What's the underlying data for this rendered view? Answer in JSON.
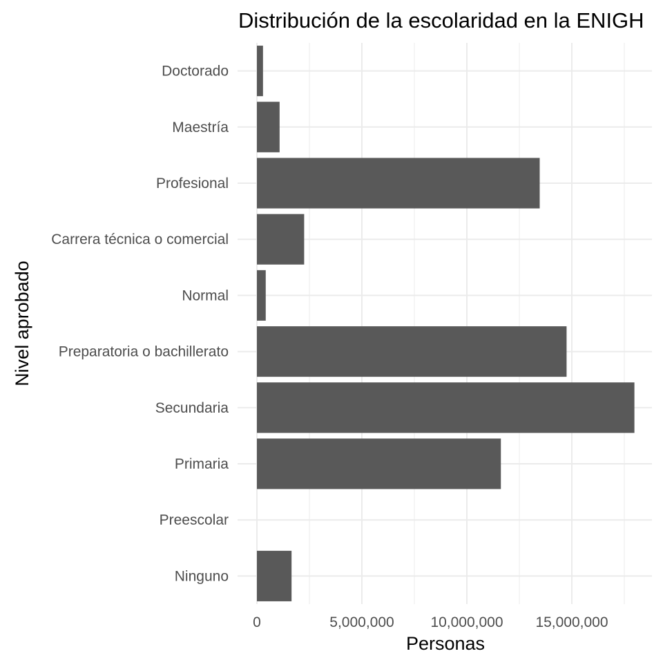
{
  "chart_data": {
    "type": "bar",
    "orientation": "horizontal",
    "title": "Distribución de la escolaridad en la ENIGH",
    "xlabel": "Personas",
    "ylabel": "Nivel aprobado",
    "categories": [
      "Ninguno",
      "Preescolar",
      "Primaria",
      "Secundaria",
      "Preparatoria o bachillerato",
      "Normal",
      "Carrera técnica o comercial",
      "Profesional",
      "Maestría",
      "Doctorado"
    ],
    "values": [
      1650000,
      0,
      11620000,
      17980000,
      14750000,
      420000,
      2250000,
      13470000,
      1080000,
      290000
    ],
    "xlim": [
      0,
      18900000
    ],
    "xticks": [
      0,
      5000000,
      10000000,
      15000000
    ],
    "xtick_labels": [
      "0",
      "5,000,000",
      "10,000,000",
      "15,000,000"
    ],
    "grid": true,
    "bar_color": "#595959"
  }
}
